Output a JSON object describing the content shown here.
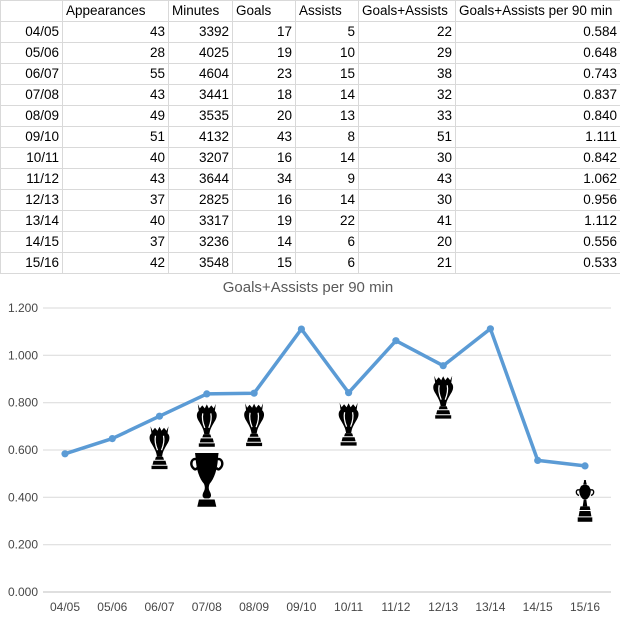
{
  "table": {
    "corner_label": "",
    "headers": [
      "Appearances",
      "Minutes",
      "Goals",
      "Assists",
      "Goals+Assists",
      "Goals+Assists per 90 min"
    ],
    "rows": [
      {
        "season": "04/05",
        "values": [
          "43",
          "3392",
          "17",
          "5",
          "22",
          "0.584"
        ]
      },
      {
        "season": "05/06",
        "values": [
          "28",
          "4025",
          "19",
          "10",
          "29",
          "0.648"
        ]
      },
      {
        "season": "06/07",
        "values": [
          "55",
          "4604",
          "23",
          "15",
          "38",
          "0.743"
        ]
      },
      {
        "season": "07/08",
        "values": [
          "43",
          "3441",
          "18",
          "14",
          "32",
          "0.837"
        ]
      },
      {
        "season": "08/09",
        "values": [
          "49",
          "3535",
          "20",
          "13",
          "33",
          "0.840"
        ]
      },
      {
        "season": "09/10",
        "values": [
          "51",
          "4132",
          "43",
          "8",
          "51",
          "1.111"
        ]
      },
      {
        "season": "10/11",
        "values": [
          "40",
          "3207",
          "16",
          "14",
          "30",
          "0.842"
        ]
      },
      {
        "season": "11/12",
        "values": [
          "43",
          "3644",
          "34",
          "9",
          "43",
          "1.062"
        ]
      },
      {
        "season": "12/13",
        "values": [
          "37",
          "2825",
          "16",
          "14",
          "30",
          "0.956"
        ]
      },
      {
        "season": "13/14",
        "values": [
          "40",
          "3317",
          "19",
          "22",
          "41",
          "1.112"
        ]
      },
      {
        "season": "14/15",
        "values": [
          "37",
          "3236",
          "14",
          "6",
          "20",
          "0.556"
        ]
      },
      {
        "season": "15/16",
        "values": [
          "42",
          "3548",
          "15",
          "6",
          "21",
          "0.533"
        ]
      }
    ]
  },
  "chart_data": {
    "type": "line",
    "title": "Goals+Assists per 90 min",
    "categories": [
      "04/05",
      "05/06",
      "06/07",
      "07/08",
      "08/09",
      "09/10",
      "10/11",
      "11/12",
      "12/13",
      "13/14",
      "14/15",
      "15/16"
    ],
    "values": [
      0.584,
      0.648,
      0.743,
      0.837,
      0.84,
      1.111,
      0.842,
      1.062,
      0.956,
      1.112,
      0.556,
      0.533
    ],
    "xlabel": "",
    "ylabel": "",
    "ylim": [
      0,
      1.2
    ],
    "yticks": [
      0,
      0.2,
      0.4,
      0.6,
      0.8,
      1.0,
      1.2
    ],
    "ytick_labels": [
      "0.000",
      "0.200",
      "0.400",
      "0.600",
      "0.800",
      "1.000",
      "1.200"
    ],
    "grid": true,
    "legend": false,
    "line_color": "#5B9BD5",
    "gridline_color": "#D9D9D9",
    "axis_line_color": "#BFBFBF",
    "title_color": "#595959",
    "trophy_color": "#000000",
    "trophies": [
      {
        "season": "06/07",
        "type": "league-trophy"
      },
      {
        "season": "07/08",
        "type": "league-trophy"
      },
      {
        "season": "07/08",
        "type": "champions-league-trophy"
      },
      {
        "season": "08/09",
        "type": "league-trophy"
      },
      {
        "season": "10/11",
        "type": "league-trophy"
      },
      {
        "season": "12/13",
        "type": "league-trophy"
      },
      {
        "season": "15/16",
        "type": "cup-trophy"
      }
    ]
  }
}
